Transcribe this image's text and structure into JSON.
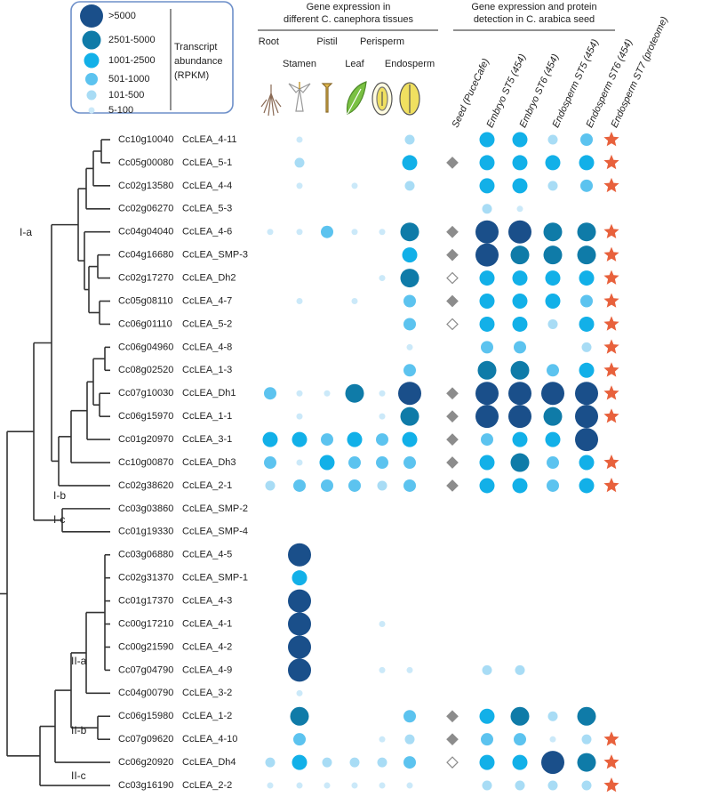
{
  "legend": {
    "entries": [
      {
        "label": ">5000",
        "color": "#1a4f8a"
      },
      {
        "label": "2501-5000",
        "color": "#0f7ba8"
      },
      {
        "label": "1001-2500",
        "color": "#12b0e8"
      },
      {
        "label": "501-1000",
        "color": "#5cc3ef"
      },
      {
        "label": "101-500",
        "color": "#a8dcf5"
      },
      {
        "label": "5-100",
        "color": "#cbe9f9"
      }
    ],
    "title_lines": [
      "Transcript",
      "abundance",
      "(RPKM)"
    ]
  },
  "tissue_header": {
    "lines": [
      "Gene expression in",
      "different C. canephora tissues"
    ],
    "columns": [
      "Root",
      "Stamen",
      "Pistil",
      "Leaf",
      "Perisperm",
      "Endosperm"
    ]
  },
  "seed_header": {
    "lines": [
      "Gene expression and protein",
      "detection in C. arabica seed"
    ],
    "columns": [
      "Seed (PuceCafe)",
      "Embryo ST5 (454)",
      "Embryo ST6 (454)",
      "Endosperm ST5 (454)",
      "Endosperm ST6 (454)",
      "Endosperm ST7 (proteome)"
    ]
  },
  "clades": [
    "I-a",
    "I-b",
    "I-c",
    "II-a",
    "II-b",
    "II-c"
  ],
  "rows": [
    {
      "gene": "Cc10g10040",
      "name": "CcLEA_4-11",
      "tissues": [
        null,
        "5-100",
        null,
        null,
        null,
        "101-500"
      ],
      "seed_detected": null,
      "seed": [
        "1001-2500",
        "1001-2500",
        "101-500",
        "501-1000"
      ],
      "proteome_detected": true
    },
    {
      "gene": "Cc05g00080",
      "name": "CcLEA_5-1",
      "tissues": [
        null,
        "101-500",
        null,
        null,
        null,
        "1001-2500"
      ],
      "seed_detected": true,
      "seed": [
        "1001-2500",
        "1001-2500",
        "1001-2500",
        "1001-2500"
      ],
      "proteome_detected": true
    },
    {
      "gene": "Cc02g13580",
      "name": "CcLEA_4-4",
      "tissues": [
        null,
        "5-100",
        null,
        "5-100",
        null,
        "101-500"
      ],
      "seed_detected": null,
      "seed": [
        "1001-2500",
        "1001-2500",
        "101-500",
        "501-1000"
      ],
      "proteome_detected": true
    },
    {
      "gene": "Cc02g06270",
      "name": "CcLEA_5-3",
      "tissues": [
        null,
        null,
        null,
        null,
        null,
        null
      ],
      "seed_detected": null,
      "seed": [
        "101-500",
        "5-100",
        null,
        null
      ],
      "proteome_detected": false
    },
    {
      "gene": "Cc04g04040",
      "name": "CcLEA_4-6",
      "tissues": [
        "5-100",
        "5-100",
        "501-1000",
        "5-100",
        "5-100",
        "2501-5000"
      ],
      "seed_detected": true,
      "seed": [
        ">5000",
        ">5000",
        "2501-5000",
        "2501-5000"
      ],
      "proteome_detected": true
    },
    {
      "gene": "Cc04g16680",
      "name": "CcLEA_SMP-3",
      "tissues": [
        null,
        null,
        null,
        null,
        null,
        "1001-2500"
      ],
      "seed_detected": true,
      "seed": [
        ">5000",
        "2501-5000",
        "2501-5000",
        "2501-5000"
      ],
      "proteome_detected": true
    },
    {
      "gene": "Cc02g17270",
      "name": "CcLEA_Dh2",
      "tissues": [
        null,
        null,
        null,
        null,
        "5-100",
        "2501-5000"
      ],
      "seed_detected": false,
      "seed": [
        "1001-2500",
        "1001-2500",
        "1001-2500",
        "1001-2500"
      ],
      "proteome_detected": true
    },
    {
      "gene": "Cc05g08110",
      "name": "CcLEA_4-7",
      "tissues": [
        null,
        "5-100",
        null,
        "5-100",
        null,
        "501-1000"
      ],
      "seed_detected": true,
      "seed": [
        "1001-2500",
        "1001-2500",
        "1001-2500",
        "501-1000"
      ],
      "proteome_detected": true
    },
    {
      "gene": "Cc06g01110",
      "name": "CcLEA_5-2",
      "tissues": [
        null,
        null,
        null,
        null,
        null,
        "501-1000"
      ],
      "seed_detected": false,
      "seed": [
        "1001-2500",
        "1001-2500",
        "101-500",
        "1001-2500"
      ],
      "proteome_detected": true
    },
    {
      "gene": "Cc06g04960",
      "name": "CcLEA_4-8",
      "tissues": [
        null,
        null,
        null,
        null,
        null,
        "5-100"
      ],
      "seed_detected": null,
      "seed": [
        "501-1000",
        "501-1000",
        null,
        "101-500"
      ],
      "proteome_detected": true
    },
    {
      "gene": "Cc08g02520",
      "name": "CcLEA_1-3",
      "tissues": [
        null,
        null,
        null,
        null,
        null,
        "501-1000"
      ],
      "seed_detected": null,
      "seed": [
        "2501-5000",
        "2501-5000",
        "501-1000",
        "1001-2500"
      ],
      "proteome_detected": true
    },
    {
      "gene": "Cc07g10030",
      "name": "CcLEA_Dh1",
      "tissues": [
        "501-1000",
        "5-100",
        "5-100",
        "2501-5000",
        "5-100",
        ">5000"
      ],
      "seed_detected": true,
      "seed": [
        ">5000",
        ">5000",
        ">5000",
        ">5000"
      ],
      "proteome_detected": true
    },
    {
      "gene": "Cc06g15970",
      "name": "CcLEA_1-1",
      "tissues": [
        null,
        "5-100",
        null,
        null,
        "5-100",
        "2501-5000"
      ],
      "seed_detected": true,
      "seed": [
        ">5000",
        ">5000",
        "2501-5000",
        ">5000"
      ],
      "proteome_detected": true
    },
    {
      "gene": "Cc01g20970",
      "name": "CcLEA_3-1",
      "tissues": [
        "1001-2500",
        "1001-2500",
        "501-1000",
        "1001-2500",
        "501-1000",
        "1001-2500"
      ],
      "seed_detected": true,
      "seed": [
        "501-1000",
        "1001-2500",
        "1001-2500",
        ">5000"
      ],
      "proteome_detected": false
    },
    {
      "gene": "Cc10g00870",
      "name": "CcLEA_Dh3",
      "tissues": [
        "501-1000",
        "5-100",
        "1001-2500",
        "501-1000",
        "501-1000",
        "501-1000"
      ],
      "seed_detected": true,
      "seed": [
        "1001-2500",
        "2501-5000",
        "501-1000",
        "1001-2500"
      ],
      "proteome_detected": true
    },
    {
      "gene": "Cc02g38620",
      "name": "CcLEA_2-1",
      "tissues": [
        "101-500",
        "501-1000",
        "501-1000",
        "501-1000",
        "101-500",
        "501-1000"
      ],
      "seed_detected": true,
      "seed": [
        "1001-2500",
        "1001-2500",
        "501-1000",
        "1001-2500"
      ],
      "proteome_detected": true
    },
    {
      "gene": "Cc03g03860",
      "name": "CcLEA_SMP-2",
      "tissues": [
        null,
        null,
        null,
        null,
        null,
        null
      ],
      "seed_detected": null,
      "seed": [
        null,
        null,
        null,
        null
      ],
      "proteome_detected": false
    },
    {
      "gene": "Cc01g19330",
      "name": "CcLEA_SMP-4",
      "tissues": [
        null,
        null,
        null,
        null,
        null,
        null
      ],
      "seed_detected": null,
      "seed": [
        null,
        null,
        null,
        null
      ],
      "proteome_detected": false
    },
    {
      "gene": "Cc03g06880",
      "name": "CcLEA_4-5",
      "tissues": [
        null,
        ">5000",
        null,
        null,
        null,
        null
      ],
      "seed_detected": null,
      "seed": [
        null,
        null,
        null,
        null
      ],
      "proteome_detected": false
    },
    {
      "gene": "Cc02g31370",
      "name": "CcLEA_SMP-1",
      "tissues": [
        null,
        "1001-2500",
        null,
        null,
        null,
        null
      ],
      "seed_detected": null,
      "seed": [
        null,
        null,
        null,
        null
      ],
      "proteome_detected": false
    },
    {
      "gene": "Cc01g17370",
      "name": "CcLEA_4-3",
      "tissues": [
        null,
        ">5000",
        null,
        null,
        null,
        null
      ],
      "seed_detected": null,
      "seed": [
        null,
        null,
        null,
        null
      ],
      "proteome_detected": false
    },
    {
      "gene": "Cc00g17210",
      "name": "CcLEA_4-1",
      "tissues": [
        null,
        ">5000",
        null,
        null,
        "5-100",
        null
      ],
      "seed_detected": null,
      "seed": [
        null,
        null,
        null,
        null
      ],
      "proteome_detected": false
    },
    {
      "gene": "Cc00g21590",
      "name": "CcLEA_4-2",
      "tissues": [
        null,
        ">5000",
        null,
        null,
        null,
        null
      ],
      "seed_detected": null,
      "seed": [
        null,
        null,
        null,
        null
      ],
      "proteome_detected": false
    },
    {
      "gene": "Cc07g04790",
      "name": "CcLEA_4-9",
      "tissues": [
        null,
        ">5000",
        null,
        null,
        "5-100",
        "5-100"
      ],
      "seed_detected": null,
      "seed": [
        "101-500",
        "101-500",
        null,
        null
      ],
      "proteome_detected": false
    },
    {
      "gene": "Cc04g00790",
      "name": "CcLEA_3-2",
      "tissues": [
        null,
        "5-100",
        null,
        null,
        null,
        null
      ],
      "seed_detected": null,
      "seed": [
        null,
        null,
        null,
        null
      ],
      "proteome_detected": false
    },
    {
      "gene": "Cc06g15980",
      "name": "CcLEA_1-2",
      "tissues": [
        null,
        "2501-5000",
        null,
        null,
        null,
        "501-1000"
      ],
      "seed_detected": true,
      "seed": [
        "1001-2500",
        "2501-5000",
        "101-500",
        "2501-5000"
      ],
      "proteome_detected": false
    },
    {
      "gene": "Cc07g09620",
      "name": "CcLEA_4-10",
      "tissues": [
        null,
        "501-1000",
        null,
        null,
        "5-100",
        "101-500"
      ],
      "seed_detected": true,
      "seed": [
        "501-1000",
        "501-1000",
        "5-100",
        "101-500"
      ],
      "proteome_detected": true
    },
    {
      "gene": "Cc06g20920",
      "name": "CcLEA_Dh4",
      "tissues": [
        "101-500",
        "1001-2500",
        "101-500",
        "101-500",
        "101-500",
        "501-1000"
      ],
      "seed_detected": false,
      "seed": [
        "1001-2500",
        "1001-2500",
        ">5000",
        "2501-5000"
      ],
      "proteome_detected": true
    },
    {
      "gene": "Cc03g16190",
      "name": "CcLEA_2-2",
      "tissues": [
        "5-100",
        "5-100",
        "5-100",
        "5-100",
        "5-100",
        "5-100"
      ],
      "seed_detected": null,
      "seed": [
        "101-500",
        "101-500",
        "101-500",
        "101-500"
      ],
      "proteome_detected": true
    }
  ]
}
